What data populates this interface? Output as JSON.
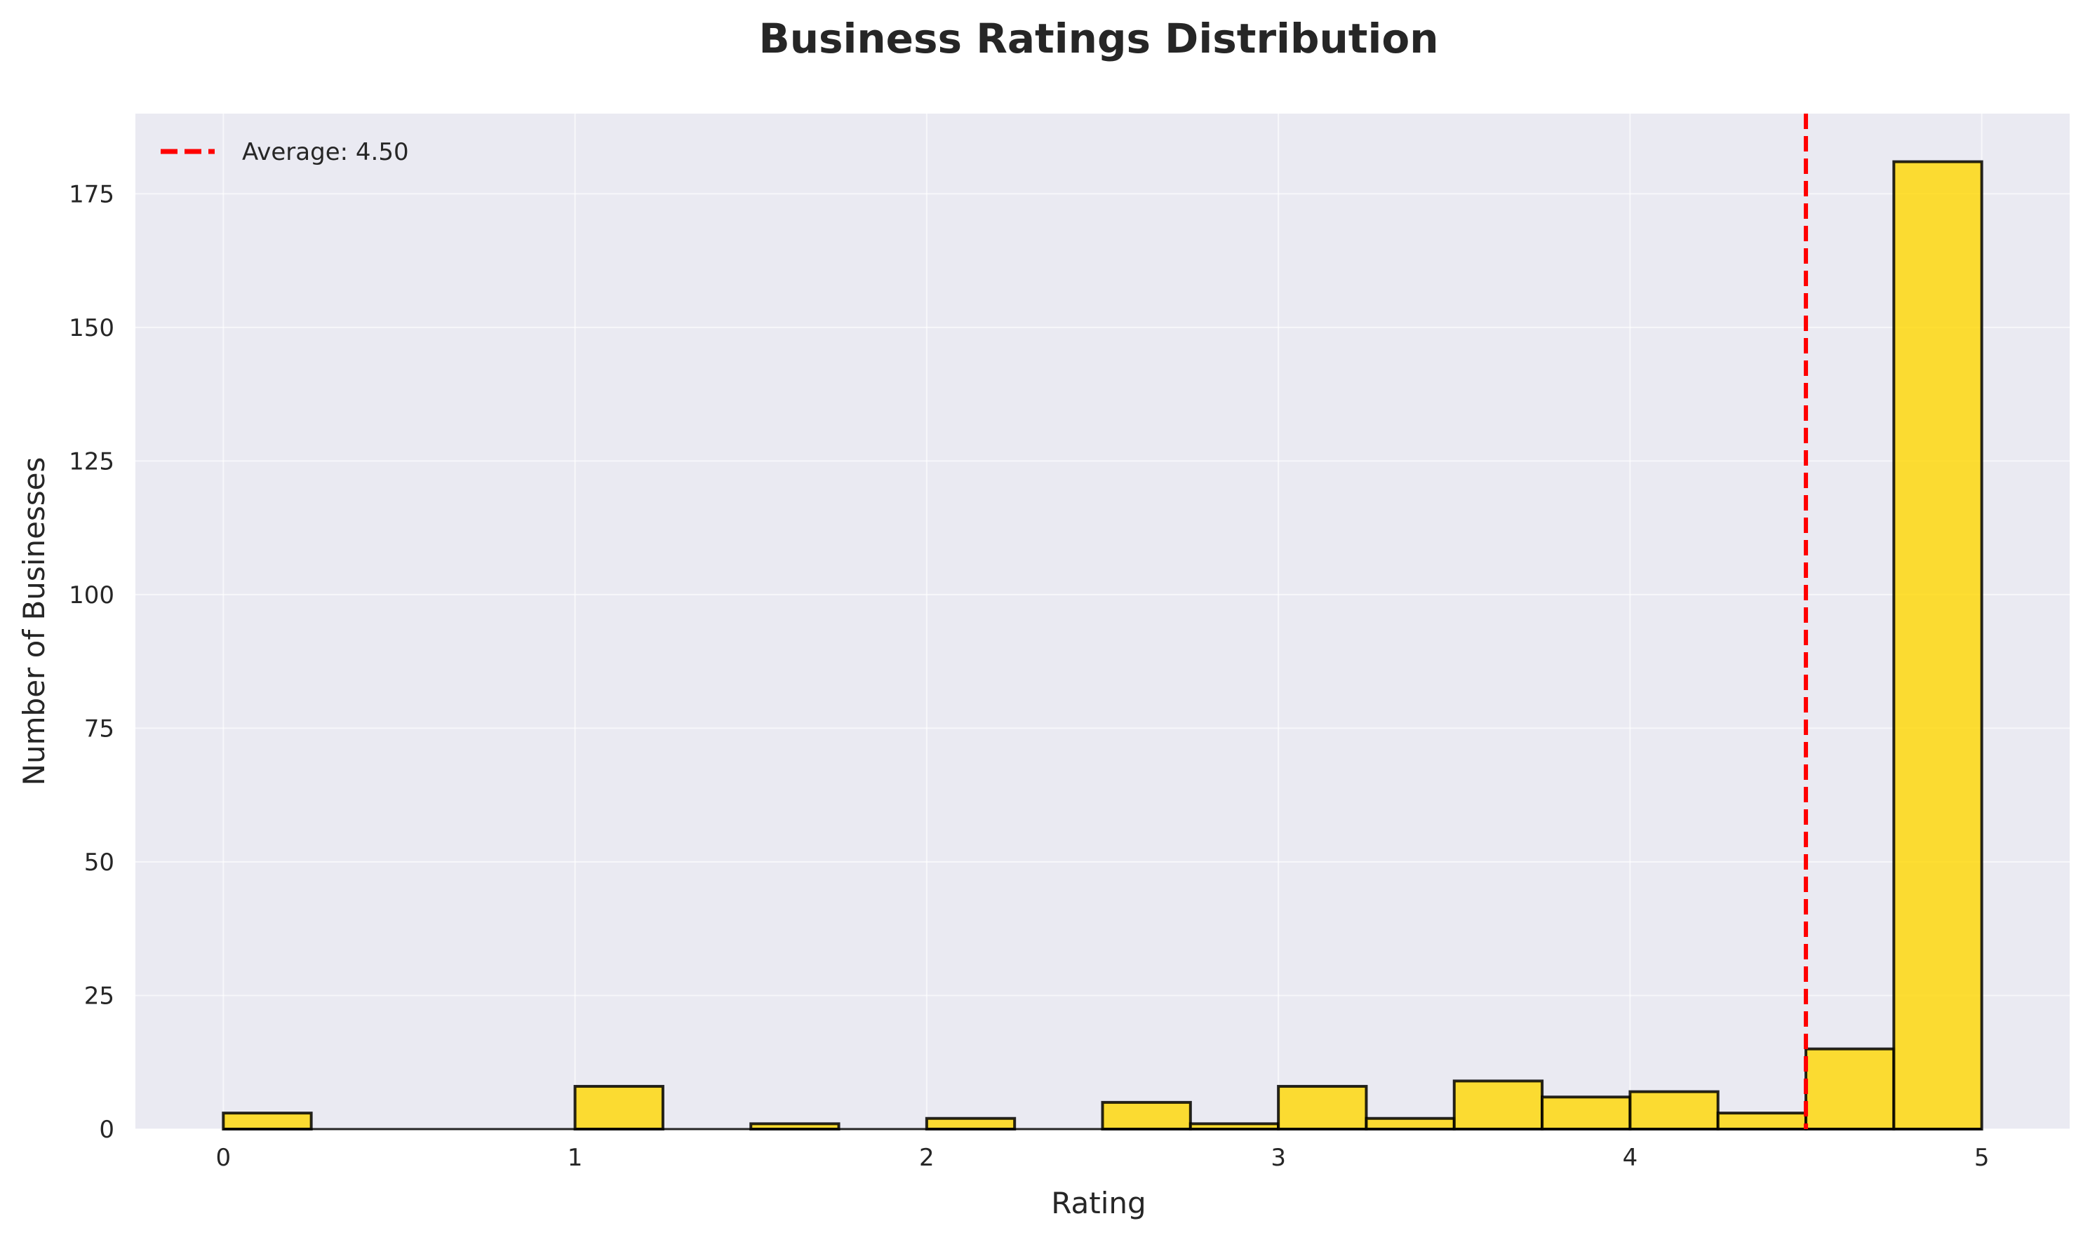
{
  "chart_data": {
    "type": "bar",
    "title": "Business Ratings Distribution",
    "xlabel": "Rating",
    "ylabel": "Number of Businesses",
    "xlim": [
      -0.25,
      5.25
    ],
    "ylim": [
      0,
      190
    ],
    "xticks": [
      0,
      1,
      2,
      3,
      4,
      5
    ],
    "yticks": [
      0,
      25,
      50,
      75,
      100,
      125,
      150,
      175
    ],
    "bin_width": 0.25,
    "bins": [
      {
        "start": 0.0,
        "end": 0.25,
        "count": 3
      },
      {
        "start": 0.25,
        "end": 0.5,
        "count": 0
      },
      {
        "start": 0.5,
        "end": 0.75,
        "count": 0
      },
      {
        "start": 0.75,
        "end": 1.0,
        "count": 0
      },
      {
        "start": 1.0,
        "end": 1.25,
        "count": 8
      },
      {
        "start": 1.25,
        "end": 1.5,
        "count": 0
      },
      {
        "start": 1.5,
        "end": 1.75,
        "count": 1
      },
      {
        "start": 1.75,
        "end": 2.0,
        "count": 0
      },
      {
        "start": 2.0,
        "end": 2.25,
        "count": 2
      },
      {
        "start": 2.25,
        "end": 2.5,
        "count": 0
      },
      {
        "start": 2.5,
        "end": 2.75,
        "count": 5
      },
      {
        "start": 2.75,
        "end": 3.0,
        "count": 1
      },
      {
        "start": 3.0,
        "end": 3.25,
        "count": 8
      },
      {
        "start": 3.25,
        "end": 3.5,
        "count": 2
      },
      {
        "start": 3.5,
        "end": 3.75,
        "count": 9
      },
      {
        "start": 3.75,
        "end": 4.0,
        "count": 6
      },
      {
        "start": 4.0,
        "end": 4.25,
        "count": 7
      },
      {
        "start": 4.25,
        "end": 4.5,
        "count": 3
      },
      {
        "start": 4.5,
        "end": 4.75,
        "count": 15
      },
      {
        "start": 4.75,
        "end": 5.0,
        "count": 181
      }
    ],
    "reference_line": {
      "x": 4.5,
      "label": "Average: 4.50",
      "color": "#ff0000",
      "style": "dashed"
    },
    "legend": {
      "position": "top-left",
      "entries": [
        "Average: 4.50"
      ]
    },
    "grid": true,
    "colors": {
      "bar_fill": "#ffd700",
      "bar_edge": "#000000",
      "plot_background": "#eaeaf2",
      "grid": "#ffffff",
      "average_line": "#ff0000"
    }
  }
}
